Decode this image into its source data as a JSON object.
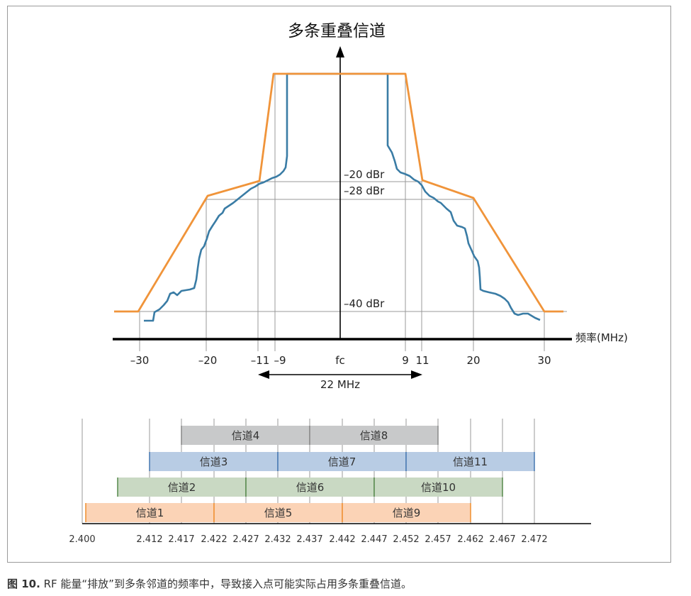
{
  "spectrum": {
    "title": "多条重叠信道",
    "x_axis_label": "频率(MHz)",
    "ticks": [
      "–30",
      "–20",
      "–11",
      "–9",
      "fc",
      "9",
      "11",
      "20",
      "30"
    ],
    "level_labels": [
      "–20 dBr",
      "–28 dBr",
      "–40 dBr"
    ],
    "bandwidth_label": "22 MHz",
    "colors": {
      "mask": "#f0943a",
      "signal": "#3a7ca5",
      "axis": "#000000",
      "guide": "#999999"
    }
  },
  "channels": {
    "freq_labels": [
      "2.400",
      "2.412",
      "2.417",
      "2.422",
      "2.427",
      "2.432",
      "2.437",
      "2.442",
      "2.447",
      "2.452",
      "2.457",
      "2.462",
      "2.467",
      "2.472"
    ],
    "rows": [
      {
        "color": "#c8c9ca",
        "edge": "#8e8e8e",
        "items": [
          "信道4",
          "信道8"
        ]
      },
      {
        "color": "#b8cce4",
        "edge": "#4f7fb5",
        "items": [
          "信道3",
          "信道7",
          "信道11"
        ]
      },
      {
        "color": "#c9d9c3",
        "edge": "#5f8f55",
        "items": [
          "信道2",
          "信道6",
          "信道10"
        ]
      },
      {
        "color": "#fbd3b6",
        "edge": "#f0943a",
        "items": [
          "信道1",
          "信道5",
          "信道9"
        ]
      }
    ]
  },
  "caption": {
    "number": "图 10.",
    "text": "RF 能量“排放”到多条邻道的频率中，导致接入点可能实际占用多条重叠信道。"
  }
}
